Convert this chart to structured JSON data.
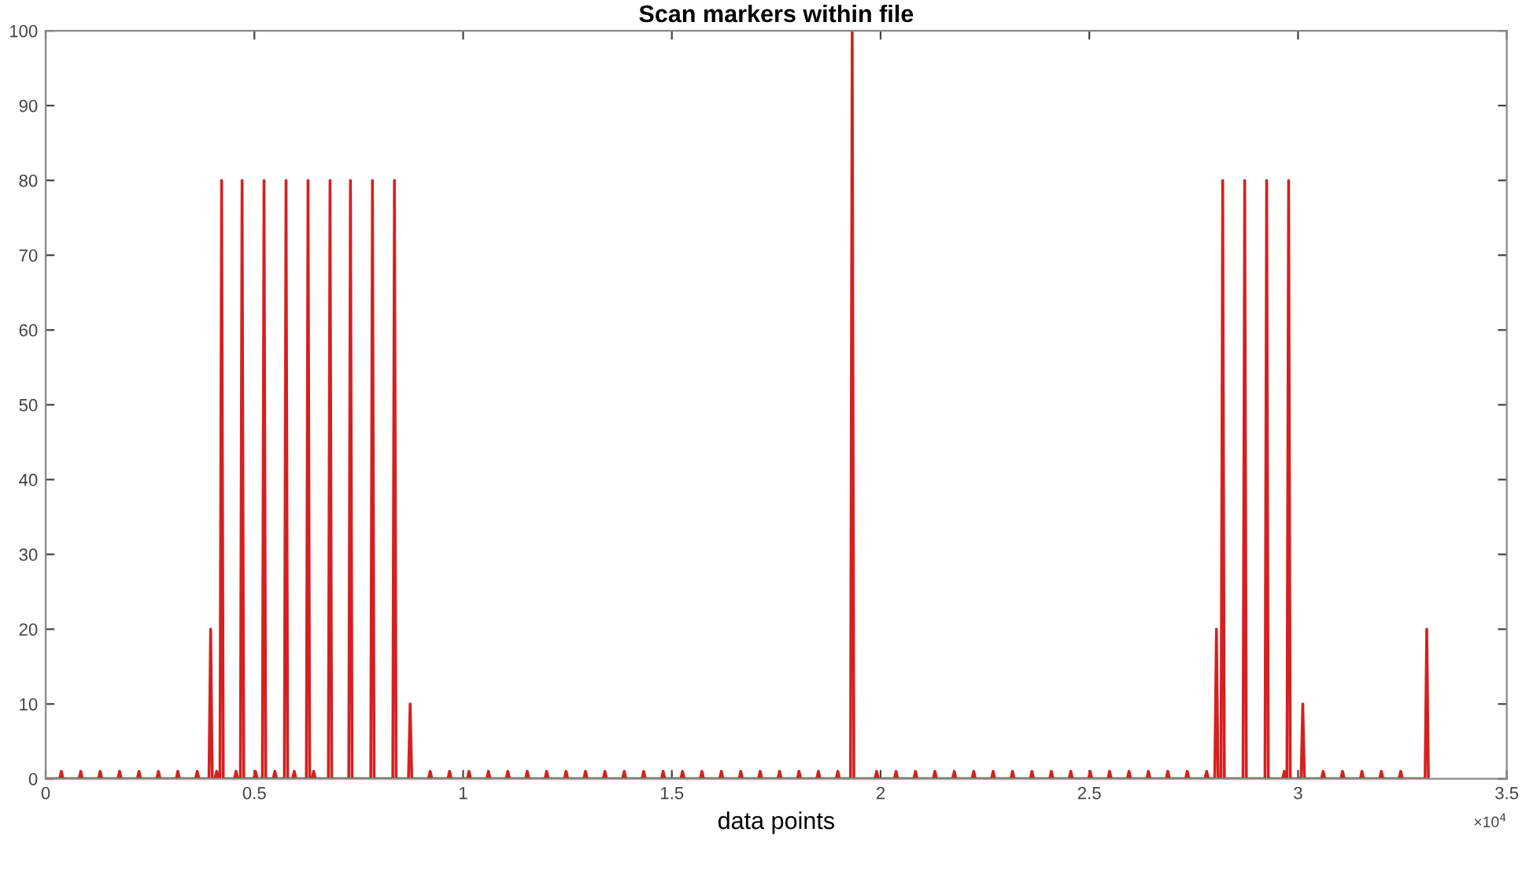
{
  "chart_data": {
    "type": "line",
    "title": "Scan markers within file",
    "xlabel": "data points",
    "xlim": [
      0,
      3.5
    ],
    "ylim": [
      0,
      100
    ],
    "xticks": [
      0,
      0.5,
      1,
      1.5,
      2,
      2.5,
      3,
      3.5
    ],
    "yticks": [
      0,
      10,
      20,
      30,
      40,
      50,
      60,
      70,
      80,
      90,
      100
    ],
    "annotations": [
      "×10$^{4}$"
    ],
    "grid": false,
    "legend": false,
    "series": [
      {
        "color": "#d62020",
        "x": [
          0,
          0.0336,
          0.0376,
          0.0416,
          0.0801,
          0.0841,
          0.0881,
          0.1266,
          0.1306,
          0.1346,
          0.1731,
          0.1771,
          0.1811,
          0.2196,
          0.2236,
          0.2276,
          0.2661,
          0.2701,
          0.2741,
          0.3126,
          0.3166,
          0.3206,
          0.3591,
          0.3631,
          0.3671,
          0.3912,
          0.3952,
          0.3992,
          0.4056,
          0.4096,
          0.4136,
          0.4175,
          0.4215,
          0.4255,
          0.4521,
          0.4561,
          0.4601,
          0.4665,
          0.4705,
          0.4745,
          0.4986,
          0.5026,
          0.5066,
          0.5191,
          0.5231,
          0.5271,
          0.5451,
          0.5491,
          0.5531,
          0.5718,
          0.5758,
          0.5798,
          0.5916,
          0.5956,
          0.5996,
          0.6245,
          0.6285,
          0.6325,
          0.6381,
          0.6421,
          0.6461,
          0.6772,
          0.6812,
          0.6852,
          0.7261,
          0.7301,
          0.7341,
          0.7788,
          0.7828,
          0.7868,
          0.8315,
          0.8355,
          0.8395,
          0.8691,
          0.8731,
          0.8771,
          0.9171,
          0.9211,
          0.9251,
          0.9636,
          0.9676,
          0.9716,
          1.0101,
          1.0141,
          1.0181,
          1.0566,
          1.0606,
          1.0646,
          1.1031,
          1.1071,
          1.1111,
          1.1496,
          1.1536,
          1.1576,
          1.1961,
          1.2001,
          1.2041,
          1.2426,
          1.2466,
          1.2506,
          1.2891,
          1.2931,
          1.2971,
          1.3356,
          1.3396,
          1.3436,
          1.3821,
          1.3861,
          1.3901,
          1.4286,
          1.4326,
          1.4366,
          1.4751,
          1.4791,
          1.4831,
          1.5216,
          1.5256,
          1.5296,
          1.5681,
          1.5721,
          1.5761,
          1.6146,
          1.6186,
          1.6226,
          1.6611,
          1.6651,
          1.6691,
          1.7076,
          1.7116,
          1.7156,
          1.7541,
          1.7581,
          1.7621,
          1.8006,
          1.8046,
          1.8086,
          1.8471,
          1.8511,
          1.8551,
          1.8936,
          1.8976,
          1.9016,
          1.928,
          1.932,
          1.936,
          1.9866,
          1.9906,
          1.9946,
          2.0331,
          2.0371,
          2.0411,
          2.0796,
          2.0836,
          2.0876,
          2.1261,
          2.1301,
          2.1341,
          2.1726,
          2.1766,
          2.1806,
          2.2191,
          2.2231,
          2.2271,
          2.2656,
          2.2696,
          2.2736,
          2.3121,
          2.3161,
          2.3201,
          2.3586,
          2.3626,
          2.3666,
          2.4051,
          2.4091,
          2.4131,
          2.4516,
          2.4556,
          2.4596,
          2.4981,
          2.5021,
          2.5061,
          2.5446,
          2.5486,
          2.5526,
          2.5911,
          2.5951,
          2.5991,
          2.6376,
          2.6416,
          2.6456,
          2.6841,
          2.6881,
          2.6921,
          2.7306,
          2.7346,
          2.7386,
          2.7771,
          2.7811,
          2.7851,
          2.8005,
          2.8045,
          2.8085,
          2.8155,
          2.8195,
          2.8235,
          2.8682,
          2.8722,
          2.8762,
          2.9208,
          2.9248,
          2.9288,
          2.9631,
          2.9671,
          2.9711,
          2.9734,
          2.9774,
          2.9814,
          3.0073,
          3.0113,
          3.0153,
          3.0561,
          3.0601,
          3.0641,
          3.1026,
          3.1066,
          3.1106,
          3.1491,
          3.1531,
          3.1571,
          3.1956,
          3.1996,
          3.2036,
          3.2421,
          3.2461,
          3.2501,
          3.3043,
          3.3083,
          3.3123
        ],
        "values": [
          0,
          0,
          1,
          0,
          0,
          1,
          0,
          0,
          1,
          0,
          0,
          1,
          0,
          0,
          1,
          0,
          0,
          1,
          0,
          0,
          1,
          0,
          0,
          1,
          0,
          0,
          20,
          0,
          0,
          1,
          0,
          0,
          80,
          0,
          0,
          1,
          0,
          0,
          80,
          0,
          0,
          1,
          0,
          0,
          80,
          0,
          0,
          1,
          0,
          0,
          80,
          0,
          0,
          1,
          0,
          0,
          80,
          0,
          0,
          1,
          0,
          0,
          80,
          0,
          0,
          80,
          0,
          0,
          80,
          0,
          0,
          80,
          0,
          0,
          10,
          0,
          0,
          1,
          0,
          0,
          1,
          0,
          0,
          1,
          0,
          0,
          1,
          0,
          0,
          1,
          0,
          0,
          1,
          0,
          0,
          1,
          0,
          0,
          1,
          0,
          0,
          1,
          0,
          0,
          1,
          0,
          0,
          1,
          0,
          0,
          1,
          0,
          0,
          1,
          0,
          0,
          1,
          0,
          0,
          1,
          0,
          0,
          1,
          0,
          0,
          1,
          0,
          0,
          1,
          0,
          0,
          1,
          0,
          0,
          1,
          0,
          0,
          1,
          0,
          0,
          1,
          0,
          0,
          100,
          0,
          0,
          1,
          0,
          0,
          1,
          0,
          0,
          1,
          0,
          0,
          1,
          0,
          0,
          1,
          0,
          0,
          1,
          0,
          0,
          1,
          0,
          0,
          1,
          0,
          0,
          1,
          0,
          0,
          1,
          0,
          0,
          1,
          0,
          0,
          1,
          0,
          0,
          1,
          0,
          0,
          1,
          0,
          0,
          1,
          0,
          0,
          1,
          0,
          0,
          1,
          0,
          0,
          1,
          0,
          0,
          20,
          0,
          0,
          80,
          0,
          0,
          80,
          0,
          0,
          80,
          0,
          0,
          1,
          0,
          0,
          80,
          0,
          0,
          10,
          0,
          0,
          1,
          0,
          0,
          1,
          0,
          0,
          1,
          0,
          0,
          1,
          0,
          0,
          1,
          0,
          0,
          20,
          0
        ]
      }
    ]
  }
}
